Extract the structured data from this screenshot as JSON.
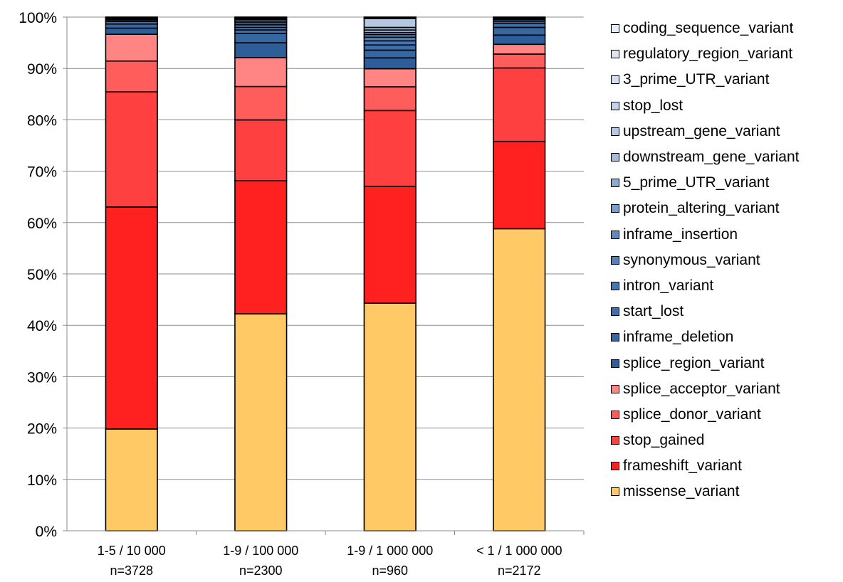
{
  "chart_data": {
    "type": "bar",
    "stacked": true,
    "percent": true,
    "categories": [
      "1-5 / 10 000",
      "1-9 / 100 000",
      "1-9 / 1 000 000",
      "< 1 / 1 000 000"
    ],
    "category_counts": [
      "n=3728",
      "n=2300",
      "n=960",
      "n=2172"
    ],
    "y_ticks": [
      "0%",
      "10%",
      "20%",
      "30%",
      "40%",
      "50%",
      "60%",
      "70%",
      "80%",
      "90%",
      "100%"
    ],
    "ylim": [
      0,
      100
    ],
    "grid": true,
    "legend_position": "right",
    "series": [
      {
        "name": "missense_variant",
        "color": "#FFC966",
        "values": [
          19.8,
          42.2,
          44.1,
          58.8
        ]
      },
      {
        "name": "frameshift_variant",
        "color": "#FF2020",
        "values": [
          43.2,
          25.9,
          22.6,
          17.0
        ]
      },
      {
        "name": "stop_gained",
        "color": "#FF4040",
        "values": [
          22.4,
          11.8,
          14.7,
          14.3
        ]
      },
      {
        "name": "splice_donor_variant",
        "color": "#FF5C5C",
        "values": [
          6.0,
          6.5,
          4.6,
          2.7
        ]
      },
      {
        "name": "splice_acceptor_variant",
        "color": "#FF8585",
        "values": [
          5.2,
          5.6,
          3.5,
          1.9
        ]
      },
      {
        "name": "splice_region_variant",
        "color": "#2E5E99",
        "values": [
          1.2,
          2.9,
          2.1,
          1.8
        ]
      },
      {
        "name": "inframe_deletion",
        "color": "#3767A3",
        "values": [
          0.8,
          1.8,
          1.5,
          1.5
        ]
      },
      {
        "name": "start_lost",
        "color": "#3E6FAD",
        "values": [
          0.5,
          0.7,
          1.0,
          0.8
        ]
      },
      {
        "name": "intron_variant",
        "color": "#4676B3",
        "values": [
          0.3,
          0.5,
          0.8,
          0.4
        ]
      },
      {
        "name": "synonymous_variant",
        "color": "#537FBA",
        "values": [
          0.2,
          0.5,
          0.7,
          0.3
        ]
      },
      {
        "name": "inframe_insertion",
        "color": "#5F8AC0",
        "values": [
          0.15,
          0.4,
          0.5,
          0.2
        ]
      },
      {
        "name": "protein_altering_variant",
        "color": "#7B9DCB",
        "values": [
          0.1,
          0.3,
          0.4,
          0.1
        ]
      },
      {
        "name": "5_prime_UTR_variant",
        "color": "#8EAAD3",
        "values": [
          0.05,
          0.3,
          0.5,
          0.1
        ]
      },
      {
        "name": "downstream_gene_variant",
        "color": "#A4BBDC",
        "values": [
          0.05,
          0.2,
          0.5,
          0.05
        ]
      },
      {
        "name": "upstream_gene_variant",
        "color": "#B4C8E3",
        "values": [
          0.0,
          0.2,
          1.7,
          0.05
        ]
      },
      {
        "name": "stop_lost",
        "color": "#C4D3E9",
        "values": [
          0.0,
          0.1,
          0.2,
          0.0
        ]
      },
      {
        "name": "3_prime_UTR_variant",
        "color": "#D2DDEE",
        "values": [
          0.0,
          0.0,
          0.1,
          0.0
        ]
      },
      {
        "name": "regulatory_region_variant",
        "color": "#DEE6F2",
        "values": [
          0.0,
          0.0,
          0.0,
          0.0
        ]
      },
      {
        "name": "coding_sequence_variant",
        "color": "#E8EEF6",
        "values": [
          0.0,
          0.0,
          0.0,
          0.0
        ]
      }
    ]
  }
}
